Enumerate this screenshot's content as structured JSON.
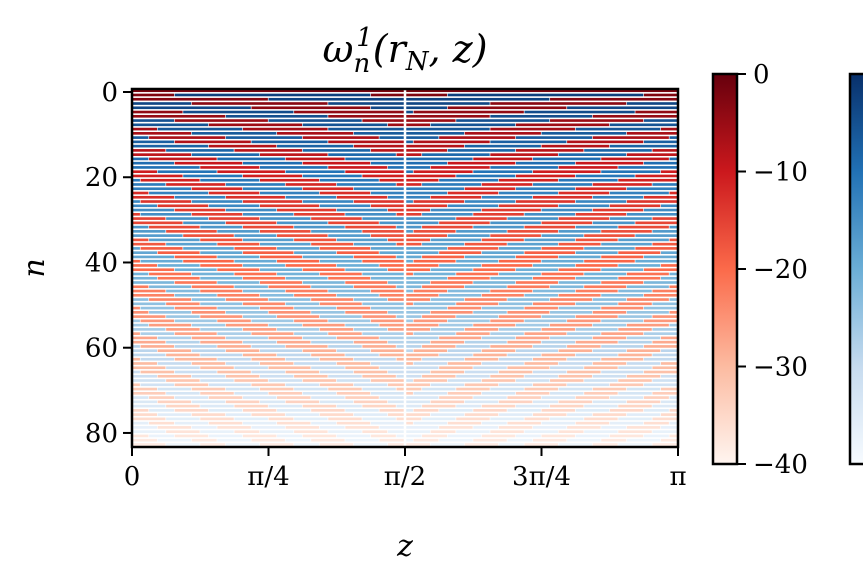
{
  "chart_data": {
    "type": "heatmap",
    "title": "ω_n^1(r_N, z)",
    "xlabel": "z",
    "ylabel": "n",
    "x_ticks": [
      "0",
      "π/4",
      "π/2",
      "3π/4",
      "π"
    ],
    "x_range": [
      0,
      3.14159
    ],
    "y_ticks": [
      "0",
      "20",
      "40",
      "60",
      "80"
    ],
    "y_tick_values": [
      0,
      20,
      40,
      60,
      80
    ],
    "y_range": [
      0,
      84
    ],
    "rows": 84,
    "colorbars": [
      {
        "name": "positive-part",
        "colormap": "Reds",
        "ticks": [
          "0",
          "−10",
          "−20",
          "−30",
          "−40"
        ],
        "tick_values": [
          0,
          -10,
          -20,
          -30,
          -40
        ],
        "range": [
          -40,
          0
        ]
      },
      {
        "name": "negative-part",
        "colormap": "Blues",
        "ticks": [],
        "range": [
          -40,
          0
        ]
      }
    ],
    "colors": {
      "red_dark": "#67000d",
      "red_mid": "#ef3b2c",
      "red_light": "#fff5f0",
      "blue_dark": "#08306b",
      "blue_mid": "#4292c6",
      "blue_light": "#f7fbff"
    }
  }
}
